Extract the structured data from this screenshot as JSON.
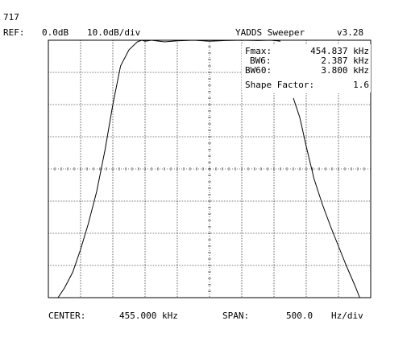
{
  "header": {
    "id": "717",
    "ref_label": "REF:",
    "ref_level": "0.0dB",
    "scale": "10.0dB/div",
    "app_title": "YADDS Sweeper",
    "version": "v3.28"
  },
  "readout": {
    "fmax": {
      "label": "Fmax:",
      "value": "454.837",
      "unit": "kHz"
    },
    "bw6": {
      "label": "BW6:",
      "value": "2.387",
      "unit": "kHz"
    },
    "bw60": {
      "label": "BW60:",
      "value": "3.800",
      "unit": "kHz"
    },
    "shape_factor": {
      "label": "Shape Factor:",
      "value": "1.6"
    }
  },
  "footer": {
    "center_label": "CENTER:",
    "center_value": "455.000 kHz",
    "span_label": "SPAN:",
    "span_value": "500.0",
    "span_unit": "Hz/div"
  },
  "chart_data": {
    "type": "line",
    "x_unit": "kHz",
    "y_unit": "dB",
    "xlim": [
      452.5,
      457.5
    ],
    "ylim": [
      -80,
      0
    ],
    "grid": true,
    "series": [
      {
        "x": [
          452.65,
          452.75,
          452.88,
          453.0,
          453.12,
          453.25,
          453.38,
          453.5,
          453.62,
          453.75,
          453.88,
          453.95,
          454.0,
          454.1,
          454.3,
          454.5,
          454.75,
          455.0,
          455.25,
          455.5,
          455.75,
          455.95,
          456.05,
          456.1
        ],
        "y": [
          -80,
          -77,
          -72,
          -65,
          -57,
          -47,
          -34,
          -20,
          -8,
          -3,
          -0.5,
          0,
          -0.3,
          0,
          -0.5,
          -0.2,
          0,
          -0.3,
          -0.1,
          0,
          -0.1,
          0,
          -0.2,
          -0.3
        ]
      },
      {
        "x": [
          456.3,
          456.4,
          456.5,
          456.62,
          456.75,
          456.88,
          457.0,
          457.12,
          457.25,
          457.33
        ],
        "y": [
          -18,
          -24,
          -33,
          -43,
          -51,
          -58,
          -64,
          -70,
          -76,
          -80
        ]
      }
    ]
  }
}
